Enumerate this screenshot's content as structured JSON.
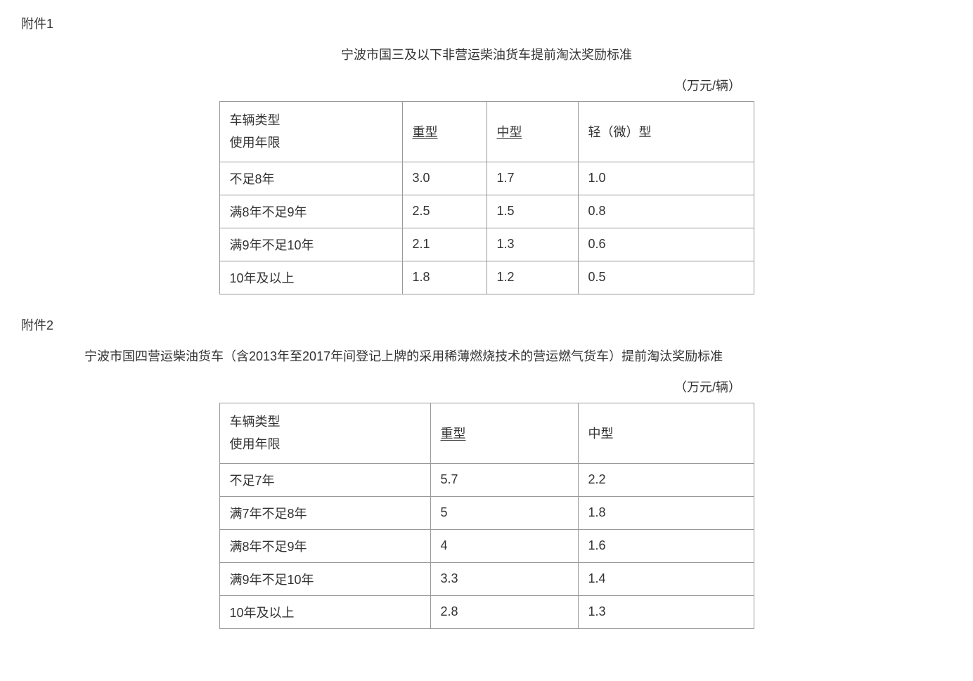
{
  "attachment1": {
    "label": "附件1",
    "title": "宁波市国三及以下非营运柴油货车提前淘汰奖励标准",
    "unit": "（万元/辆）",
    "table": {
      "type": "table",
      "header_col1_line1": "车辆类型",
      "header_col1_line2": "使用年限",
      "columns": [
        "重型",
        "中型",
        "轻（微）型"
      ],
      "rows": [
        {
          "label": "不足8年",
          "values": [
            "3.0",
            "1.7",
            "1.0"
          ]
        },
        {
          "label": "满8年不足9年",
          "values": [
            "2.5",
            "1.5",
            "0.8"
          ]
        },
        {
          "label": "满9年不足10年",
          "values": [
            "2.1",
            "1.3",
            "0.6"
          ]
        },
        {
          "label": "10年及以上",
          "values": [
            "1.8",
            "1.2",
            "0.5"
          ]
        }
      ],
      "border_color": "#999999",
      "text_color": "#333333",
      "background_color": "#ffffff",
      "fontsize": 18,
      "underlined_headers": [
        "重型",
        "中型"
      ]
    }
  },
  "attachment2": {
    "label": "附件2",
    "title": "宁波市国四营运柴油货车（含2013年至2017年间登记上牌的采用稀薄燃烧技术的营运燃气货车）提前淘汰奖励标准",
    "unit": "（万元/辆）",
    "table": {
      "type": "table",
      "header_col1_line1": "车辆类型",
      "header_col1_line2": "使用年限",
      "columns": [
        "重型",
        "中型"
      ],
      "rows": [
        {
          "label": "不足7年",
          "values": [
            "5.7",
            "2.2"
          ]
        },
        {
          "label": "满7年不足8年",
          "values": [
            "5",
            "1.8"
          ]
        },
        {
          "label": "满8年不足9年",
          "values": [
            "4",
            "1.6"
          ]
        },
        {
          "label": "满9年不足10年",
          "values": [
            "3.3",
            "1.4"
          ]
        },
        {
          "label": "10年及以上",
          "values": [
            "2.8",
            "1.3"
          ]
        }
      ],
      "border_color": "#999999",
      "text_color": "#333333",
      "background_color": "#ffffff",
      "fontsize": 18,
      "underlined_headers": [
        "重型"
      ]
    }
  }
}
